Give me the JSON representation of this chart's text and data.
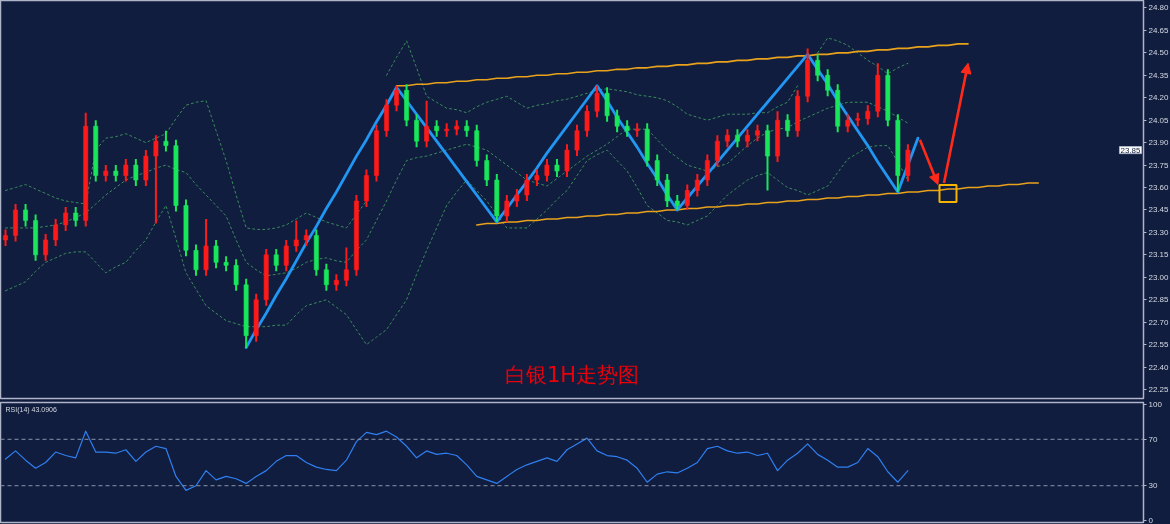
{
  "chart_data": [
    {
      "type": "candlestick",
      "categories": [
        null,
        null,
        null,
        null,
        null,
        null,
        null,
        null,
        null,
        null,
        null,
        null,
        null,
        null,
        null,
        null,
        null,
        null,
        null,
        null,
        null,
        null,
        null,
        null,
        null,
        null,
        null,
        null,
        null,
        null,
        null,
        null,
        null,
        null,
        null,
        null,
        null,
        null,
        null,
        null,
        null,
        null,
        null,
        null,
        null,
        null,
        null,
        null,
        null,
        null,
        null,
        null,
        null,
        null,
        null,
        null,
        null,
        null,
        null,
        null,
        null,
        null,
        null,
        null,
        null,
        null,
        null,
        null,
        null,
        null,
        null,
        null,
        null,
        null,
        null,
        null,
        null,
        null,
        null,
        null,
        null,
        null,
        null,
        null,
        null,
        null,
        null,
        null,
        null,
        null,
        null,
        null,
        null,
        null,
        null,
        null,
        null,
        null,
        null,
        null,
        null,
        null,
        null,
        null,
        null,
        null,
        null,
        null,
        null,
        null,
        null,
        null,
        null,
        null
      ],
      "ohlc": [
        [
          23.25,
          23.32,
          23.21,
          23.28
        ],
        [
          23.28,
          23.49,
          23.24,
          23.45
        ],
        [
          23.45,
          23.49,
          23.34,
          23.38
        ],
        [
          23.38,
          23.42,
          23.11,
          23.15
        ],
        [
          23.15,
          23.29,
          23.11,
          23.25
        ],
        [
          23.25,
          23.39,
          23.21,
          23.35
        ],
        [
          23.35,
          23.47,
          23.31,
          23.43
        ],
        [
          23.43,
          23.47,
          23.34,
          23.38
        ],
        [
          23.38,
          24.1,
          23.34,
          24.01
        ],
        [
          24.01,
          24.05,
          23.64,
          23.68
        ],
        [
          23.68,
          23.75,
          23.64,
          23.71
        ],
        [
          23.71,
          23.75,
          23.64,
          23.68
        ],
        [
          23.68,
          23.79,
          23.64,
          23.75
        ],
        [
          23.75,
          23.79,
          23.61,
          23.65
        ],
        [
          23.65,
          23.85,
          23.61,
          23.81
        ],
        [
          23.81,
          23.95,
          23.36,
          23.91
        ],
        [
          23.91,
          23.98,
          23.84,
          23.88
        ],
        [
          23.88,
          23.92,
          23.44,
          23.48
        ],
        [
          23.48,
          23.52,
          23.14,
          23.18
        ],
        [
          23.18,
          23.22,
          23.01,
          23.05
        ],
        [
          23.05,
          23.39,
          23.01,
          23.21
        ],
        [
          23.21,
          23.25,
          23.06,
          23.1
        ],
        [
          23.1,
          23.14,
          23.04,
          23.08
        ],
        [
          23.08,
          23.12,
          22.91,
          22.95
        ],
        [
          22.95,
          22.99,
          22.53,
          22.61
        ],
        [
          22.61,
          22.89,
          22.57,
          22.85
        ],
        [
          22.85,
          23.19,
          22.81,
          23.15
        ],
        [
          23.15,
          23.19,
          23.04,
          23.08
        ],
        [
          23.08,
          23.25,
          23.04,
          23.21
        ],
        [
          23.21,
          23.38,
          23.17,
          23.25
        ],
        [
          23.25,
          23.32,
          23.21,
          23.28
        ],
        [
          23.28,
          23.32,
          23.01,
          23.05
        ],
        [
          23.05,
          23.09,
          22.91,
          22.95
        ],
        [
          22.95,
          23.02,
          22.91,
          22.98
        ],
        [
          22.98,
          23.2,
          22.94,
          23.05
        ],
        [
          23.05,
          23.55,
          23.01,
          23.51
        ],
        [
          23.51,
          23.72,
          23.47,
          23.68
        ],
        [
          23.68,
          24.02,
          23.64,
          23.98
        ],
        [
          23.98,
          24.19,
          23.94,
          24.15
        ],
        [
          24.15,
          24.28,
          24.11,
          24.25
        ],
        [
          24.25,
          24.29,
          24.01,
          24.05
        ],
        [
          24.05,
          24.09,
          23.87,
          23.91
        ],
        [
          23.91,
          24.18,
          23.87,
          24.01
        ],
        [
          24.01,
          24.05,
          23.94,
          23.98
        ],
        [
          23.98,
          24.03,
          23.94,
          23.99
        ],
        [
          23.99,
          24.05,
          23.95,
          24.01
        ],
        [
          24.01,
          24.05,
          23.94,
          23.98
        ],
        [
          23.98,
          24.02,
          23.74,
          23.78
        ],
        [
          23.78,
          23.82,
          23.61,
          23.65
        ],
        [
          23.65,
          23.69,
          23.37,
          23.41
        ],
        [
          23.41,
          23.55,
          23.37,
          23.51
        ],
        [
          23.51,
          23.59,
          23.47,
          23.55
        ],
        [
          23.55,
          23.69,
          23.51,
          23.65
        ],
        [
          23.65,
          23.72,
          23.61,
          23.68
        ],
        [
          23.68,
          23.79,
          23.64,
          23.75
        ],
        [
          23.75,
          23.79,
          23.67,
          23.71
        ],
        [
          23.71,
          23.89,
          23.67,
          23.85
        ],
        [
          23.85,
          24.02,
          23.81,
          23.98
        ],
        [
          23.98,
          24.15,
          23.94,
          24.11
        ],
        [
          24.11,
          24.28,
          24.07,
          24.23
        ],
        [
          24.23,
          24.27,
          24.04,
          24.08
        ],
        [
          24.08,
          24.12,
          23.97,
          24.01
        ],
        [
          24.01,
          24.05,
          23.94,
          23.98
        ],
        [
          23.98,
          24.03,
          23.94,
          23.99
        ],
        [
          23.99,
          24.03,
          23.74,
          23.78
        ],
        [
          23.78,
          23.82,
          23.61,
          23.65
        ],
        [
          23.65,
          23.69,
          23.47,
          23.51
        ],
        [
          23.51,
          23.55,
          23.45,
          23.48
        ],
        [
          23.48,
          23.62,
          23.45,
          23.58
        ],
        [
          23.58,
          23.69,
          23.54,
          23.65
        ],
        [
          23.65,
          23.82,
          23.61,
          23.78
        ],
        [
          23.78,
          23.95,
          23.74,
          23.91
        ],
        [
          23.91,
          23.99,
          23.87,
          23.95
        ],
        [
          23.95,
          23.99,
          23.87,
          23.91
        ],
        [
          23.91,
          23.99,
          23.87,
          23.95
        ],
        [
          23.95,
          24.02,
          23.91,
          23.98
        ],
        [
          23.98,
          24.02,
          23.58,
          23.81
        ],
        [
          23.81,
          24.11,
          23.77,
          24.05
        ],
        [
          24.05,
          24.09,
          23.94,
          23.98
        ],
        [
          23.98,
          24.25,
          23.94,
          24.21
        ],
        [
          24.21,
          24.53,
          24.17,
          24.45
        ],
        [
          24.45,
          24.49,
          24.31,
          24.35
        ],
        [
          24.35,
          24.39,
          24.21,
          24.25
        ],
        [
          24.25,
          24.29,
          23.97,
          24.01
        ],
        [
          24.01,
          24.09,
          23.97,
          24.05
        ],
        [
          24.05,
          24.1,
          24.01,
          24.06
        ],
        [
          24.06,
          24.15,
          24.02,
          24.11
        ],
        [
          24.11,
          24.43,
          24.07,
          24.35
        ],
        [
          24.35,
          24.39,
          24.01,
          24.05
        ],
        [
          24.05,
          24.09,
          23.57,
          23.68
        ],
        [
          23.68,
          23.89,
          23.64,
          23.85
        ],
        null,
        null,
        null,
        null,
        null,
        null,
        null,
        null,
        null,
        null,
        null,
        null,
        null,
        null,
        null,
        null,
        null,
        null,
        null,
        null,
        null,
        null,
        null
      ],
      "colors": [
        "#ff1a1a",
        "#ff1a1a",
        "#19e65a",
        "#19e65a",
        "#ff1a1a",
        "#ff1a1a",
        "#ff1a1a",
        "#19e65a",
        "#ff1a1a",
        "#19e65a",
        "#ff1a1a",
        "#19e65a",
        "#ff1a1a",
        "#19e65a",
        "#ff1a1a",
        "#ff1a1a",
        "#19e65a",
        "#19e65a",
        "#19e65a",
        "#19e65a",
        "#ff1a1a",
        "#19e65a",
        "#19e65a",
        "#19e65a",
        "#19e65a",
        "#ff1a1a",
        "#ff1a1a",
        "#19e65a",
        "#ff1a1a",
        "#ff1a1a",
        "#ff1a1a",
        "#19e65a",
        "#19e65a",
        "#ff1a1a",
        "#ff1a1a",
        "#ff1a1a",
        "#ff1a1a",
        "#ff1a1a",
        "#ff1a1a",
        "#ff1a1a",
        "#19e65a",
        "#19e65a",
        "#ff1a1a",
        "#19e65a",
        "#ff1a1a",
        "#ff1a1a",
        "#19e65a",
        "#19e65a",
        "#19e65a",
        "#19e65a",
        "#ff1a1a",
        "#ff1a1a",
        "#ff1a1a",
        "#ff1a1a",
        "#ff1a1a",
        "#19e65a",
        "#ff1a1a",
        "#ff1a1a",
        "#ff1a1a",
        "#ff1a1a",
        "#19e65a",
        "#19e65a",
        "#19e65a",
        "#ff1a1a",
        "#19e65a",
        "#19e65a",
        "#19e65a",
        "#19e65a",
        "#ff1a1a",
        "#ff1a1a",
        "#ff1a1a",
        "#ff1a1a",
        "#ff1a1a",
        "#19e65a",
        "#ff1a1a",
        "#ff1a1a",
        "#19e65a",
        "#ff1a1a",
        "#19e65a",
        "#ff1a1a",
        "#ff1a1a",
        "#19e65a",
        "#19e65a",
        "#19e65a",
        "#ff1a1a",
        "#ff1a1a",
        "#ff1a1a",
        "#ff1a1a",
        "#19e65a",
        "#19e65a",
        "#ff1a1a",
        null,
        null,
        null,
        null,
        null,
        null,
        null,
        null,
        null,
        null,
        null,
        null,
        null,
        null,
        null,
        null,
        null,
        null,
        null,
        null,
        null,
        null,
        null
      ],
      "ylim": [
        22.19,
        24.85
      ],
      "yticks": [
        22.25,
        {
          "value": 22.4,
          "label": "22.40"
        },
        22.55,
        {
          "value": 22.7,
          "label": "22.70"
        },
        22.85,
        {
          "value": 23.0,
          "label": "23.00"
        },
        23.15,
        {
          "value": 23.3,
          "label": "23.30"
        },
        23.45,
        {
          "value": 23.6,
          "label": "23.60"
        },
        23.75,
        {
          "value": 23.9,
          "label": "23.90"
        },
        24.05,
        {
          "value": 24.2,
          "label": "24.20"
        },
        24.35,
        {
          "value": 24.5,
          "label": "24.50"
        },
        24.65,
        {
          "value": 24.8,
          "label": "24.80"
        }
      ],
      "series": [
        {
          "type": "line",
          "color": "#3a8c5c",
          "line_style": "dotted",
          "values": [
            23.58,
            23.6,
            23.62,
            23.59,
            23.56,
            23.53,
            23.51,
            23.5,
            23.49,
            23.85,
            23.93,
            23.94,
            23.96,
            23.93,
            23.9,
            23.93,
            23.96,
            24.06,
            24.15,
            24.17,
            24.18,
            23.98,
            23.78,
            23.55,
            23.33,
            23.32,
            23.32,
            23.33,
            23.35,
            23.39,
            23.43,
            23.4,
            23.37,
            23.35,
            23.33,
            23.42,
            23.51,
            null,
            24.35,
            24.47,
            24.58,
            24.4,
            24.21,
            24.17,
            24.13,
            24.12,
            24.1,
            24.14,
            24.17,
            24.19,
            24.21,
            24.17,
            24.13,
            24.15,
            24.16,
            24.18,
            24.19,
            24.21,
            24.23,
            24.25,
            24.26,
            24.25,
            24.24,
            24.22,
            24.21,
            24.2,
            24.18,
            24.14,
            24.09,
            24.07,
            24.05,
            24.07,
            24.09,
            24.09,
            24.09,
            24.1,
            24.1,
            24.14,
            24.17,
            24.28,
            null,
            24.5,
            24.6,
            24.58,
            24.55,
            24.5,
            24.45,
            24.41,
            24.36,
            24.4,
            24.43,
            null,
            null,
            null,
            null,
            null,
            null,
            null,
            null,
            null,
            null,
            null,
            null,
            null,
            null,
            null,
            null,
            null,
            null,
            null,
            null,
            null,
            null,
            null
          ]
        },
        {
          "type": "line",
          "color": "#3a8c5c",
          "line_style": "dotted",
          "values": [
            23.33,
            23.33,
            23.33,
            23.33,
            23.34,
            23.35,
            23.37,
            23.4,
            23.43,
            23.49,
            23.55,
            23.6,
            23.65,
            23.68,
            23.7,
            23.73,
            23.75,
            23.72,
            23.7,
            23.62,
            23.55,
            23.48,
            23.41,
            23.25,
            23.1,
            23.05,
            23.01,
            23.02,
            23.03,
            23.06,
            23.1,
            23.12,
            23.13,
            23.11,
            23.1,
            23.18,
            23.25,
            23.38,
            23.51,
            23.65,
            23.78,
            23.8,
            23.81,
            23.83,
            23.85,
            23.87,
            23.89,
            23.87,
            23.85,
            23.8,
            23.75,
            23.7,
            23.65,
            23.63,
            23.61,
            23.66,
            23.71,
            23.76,
            23.81,
            23.85,
            23.89,
            23.94,
            23.99,
            23.99,
            23.99,
            23.92,
            23.85,
            23.8,
            23.75,
            23.73,
            23.71,
            23.74,
            23.76,
            23.82,
            23.88,
            23.93,
            23.97,
            23.99,
            24.0,
            24.04,
            24.07,
            24.1,
            24.13,
            24.15,
            24.17,
            24.17,
            24.17,
            24.14,
            24.11,
            24.07,
            24.03,
            null,
            null,
            null,
            null,
            null,
            null,
            null,
            null,
            null,
            null,
            null,
            null,
            null,
            null,
            null,
            null,
            null,
            null,
            null,
            null,
            null,
            null,
            null
          ]
        },
        {
          "type": "line",
          "color": "#3a8c5c",
          "line_style": "dotted",
          "values": [
            22.91,
            22.94,
            22.97,
            23.04,
            23.1,
            23.13,
            23.16,
            23.17,
            23.17,
            23.1,
            23.03,
            23.07,
            23.1,
            23.18,
            23.25,
            23.37,
            23.48,
            23.26,
            23.03,
            22.92,
            22.81,
            22.76,
            22.71,
            22.69,
            22.67,
            22.67,
            22.67,
            22.68,
            22.68,
            22.75,
            22.81,
            22.83,
            22.85,
            22.8,
            22.75,
            22.65,
            22.55,
            22.6,
            22.65,
            22.75,
            22.85,
            23.02,
            23.18,
            23.33,
            23.48,
            23.57,
            23.65,
            23.58,
            23.51,
            23.42,
            23.33,
            23.33,
            23.33,
            23.39,
            23.45,
            23.52,
            23.58,
            23.68,
            23.78,
            23.82,
            23.85,
            23.78,
            23.71,
            23.6,
            23.48,
            23.43,
            23.38,
            23.37,
            23.35,
            23.38,
            23.41,
            23.48,
            23.55,
            23.6,
            23.65,
            23.68,
            23.7,
            23.65,
            23.6,
            23.58,
            23.55,
            23.58,
            23.61,
            23.7,
            23.79,
            23.83,
            23.87,
            23.88,
            23.88,
            23.77,
            23.65,
            null,
            null,
            null,
            null,
            null,
            null,
            null,
            null,
            null,
            null,
            null,
            null,
            null,
            null,
            null,
            null,
            null,
            null,
            null,
            null,
            null,
            null,
            null
          ]
        },
        {
          "type": "line",
          "color": "#e9a21c",
          "line_style": "solid",
          "values": [
            null,
            null,
            null,
            null,
            null,
            null,
            null,
            null,
            null,
            null,
            null,
            null,
            null,
            null,
            null,
            null,
            null,
            null,
            null,
            null,
            null,
            null,
            null,
            null,
            null,
            null,
            null,
            null,
            null,
            null,
            null,
            null,
            null,
            null,
            null,
            null,
            null,
            null,
            null,
            24.28,
            24.28,
            24.29,
            24.29,
            24.3,
            24.3,
            24.31,
            24.31,
            24.32,
            24.32,
            24.33,
            24.33,
            24.34,
            24.34,
            24.35,
            24.35,
            24.36,
            24.36,
            24.37,
            24.37,
            24.38,
            24.38,
            24.39,
            24.39,
            24.4,
            24.4,
            24.41,
            24.41,
            24.42,
            24.42,
            24.43,
            24.43,
            24.44,
            24.44,
            24.45,
            24.45,
            24.46,
            24.46,
            24.47,
            24.47,
            24.48,
            24.48,
            24.49,
            24.49,
            24.5,
            24.5,
            24.51,
            24.51,
            24.52,
            24.52,
            24.53,
            24.53,
            24.54,
            24.54,
            24.55,
            24.55,
            24.56,
            24.56,
            null,
            null,
            null,
            null,
            null,
            null,
            null,
            null,
            null,
            null,
            null,
            null,
            null,
            null,
            null,
            null,
            null
          ]
        },
        {
          "type": "line",
          "color": "#e9a21c",
          "line_style": "solid",
          "values": [
            null,
            null,
            null,
            null,
            null,
            null,
            null,
            null,
            null,
            null,
            null,
            null,
            null,
            null,
            null,
            null,
            null,
            null,
            null,
            null,
            null,
            null,
            null,
            null,
            null,
            null,
            null,
            null,
            null,
            null,
            null,
            null,
            null,
            null,
            null,
            null,
            null,
            null,
            null,
            null,
            null,
            null,
            null,
            null,
            null,
            null,
            null,
            23.35,
            23.36,
            23.36,
            23.37,
            23.37,
            23.38,
            23.38,
            23.39,
            23.39,
            23.4,
            23.4,
            23.41,
            23.41,
            23.42,
            23.42,
            23.43,
            23.43,
            23.44,
            23.44,
            23.45,
            23.45,
            23.46,
            23.46,
            23.47,
            23.47,
            23.48,
            23.48,
            23.49,
            23.49,
            23.5,
            23.5,
            23.51,
            23.51,
            23.52,
            23.52,
            23.53,
            23.53,
            23.54,
            23.54,
            23.55,
            23.55,
            23.56,
            23.56,
            23.57,
            23.57,
            23.58,
            23.58,
            23.59,
            23.59,
            23.6,
            23.6,
            23.61,
            23.61,
            23.62,
            23.62,
            23.63,
            23.63,
            null,
            null,
            null,
            null,
            null,
            null,
            null,
            null,
            null,
            null
          ]
        },
        {
          "type": "line",
          "color": "#2196f3",
          "line_style": "solid",
          "values": [
            null,
            null,
            null,
            null,
            null,
            null,
            null,
            null,
            null,
            null,
            null,
            null,
            null,
            null,
            null,
            null,
            null,
            null,
            null,
            null,
            null,
            null,
            null,
            null,
            22.53,
            22.65,
            22.76,
            22.88,
            22.99,
            23.11,
            23.23,
            23.34,
            23.46,
            23.57,
            23.69,
            23.81,
            23.92,
            24.04,
            24.15,
            24.27,
            24.18,
            24.09,
            24.0,
            23.91,
            23.82,
            23.73,
            23.64,
            23.55,
            23.46,
            23.37,
            23.46,
            23.55,
            23.64,
            23.73,
            23.83,
            23.92,
            24.01,
            24.1,
            24.19,
            24.28,
            24.18,
            24.07,
            23.97,
            23.87,
            23.76,
            23.66,
            23.55,
            23.45,
            23.53,
            23.61,
            23.69,
            23.77,
            23.85,
            23.93,
            24.01,
            24.09,
            24.17,
            24.25,
            24.33,
            24.41,
            24.49,
            24.39,
            24.29,
            24.18,
            24.08,
            23.98,
            23.88,
            23.77,
            23.67,
            23.57,
            23.75,
            23.93,
            null,
            null,
            null,
            null,
            null,
            null,
            null,
            null,
            null,
            null,
            null,
            null,
            null,
            null,
            null,
            null,
            null,
            null,
            null,
            null,
            null,
            null
          ]
        },
        {
          "type": "scatter",
          "color": "#f5b400",
          "marker": "square",
          "values": [
            null,
            null,
            null,
            null,
            null,
            null,
            null,
            null,
            null,
            null,
            null,
            null,
            null,
            null,
            null,
            null,
            null,
            null,
            null,
            null,
            null,
            null,
            null,
            null,
            null,
            null,
            null,
            null,
            null,
            null,
            null,
            null,
            null,
            null,
            null,
            null,
            null,
            null,
            null,
            null,
            null,
            null,
            null,
            null,
            null,
            null,
            null,
            null,
            null,
            null,
            null,
            null,
            null,
            null,
            null,
            null,
            null,
            null,
            null,
            null,
            null,
            null,
            null,
            null,
            null,
            null,
            null,
            null,
            null,
            null,
            null,
            null,
            null,
            null,
            null,
            null,
            null,
            null,
            null,
            null,
            null,
            null,
            null,
            null,
            null,
            null,
            null,
            null,
            null,
            null,
            null,
            null,
            null,
            null,
            23.56,
            null,
            null,
            null,
            null,
            null,
            null,
            null,
            null,
            null,
            null,
            null,
            null,
            null,
            null,
            null,
            null,
            null,
            null,
            null
          ]
        }
      ],
      "annotations": [
        "白银1H走势图",
        {
          "text": "23.85",
          "y": 23.85
        }
      ]
    },
    {
      "type": "line",
      "title": "RSI(14) 43.0906",
      "categories": [
        null,
        null,
        null,
        null,
        null,
        null,
        null,
        null,
        null,
        null,
        null,
        null,
        null,
        null,
        null,
        null,
        null,
        null,
        null,
        null,
        null,
        null,
        null,
        null,
        null,
        null,
        null,
        null,
        null,
        null,
        null,
        null,
        null,
        null,
        null,
        null,
        null,
        null,
        null,
        null,
        null,
        null,
        null,
        null,
        null,
        null,
        null,
        null,
        null,
        null,
        null,
        null,
        null,
        null,
        null,
        null,
        null,
        null,
        null,
        null,
        null,
        null,
        null,
        null,
        null,
        null,
        null,
        null,
        null,
        null,
        null,
        null,
        null,
        null,
        null,
        null,
        null,
        null,
        null,
        null,
        null,
        null,
        null,
        null,
        null,
        null,
        null,
        null,
        null,
        null,
        null,
        null,
        null,
        null,
        null,
        null,
        null,
        null,
        null,
        null,
        null,
        null,
        null,
        null,
        null,
        null,
        null,
        null,
        null,
        null,
        null,
        null,
        null,
        null
      ],
      "values": [
        53,
        60,
        52,
        45,
        50,
        59,
        56,
        54,
        77,
        59,
        59,
        58,
        61,
        51,
        59,
        64,
        62,
        38,
        26,
        30,
        43,
        35,
        38,
        36,
        32,
        38,
        43,
        51,
        56,
        56,
        50,
        46,
        44,
        43,
        52,
        68,
        76,
        74,
        77,
        72,
        64,
        54,
        60,
        57,
        58,
        56,
        48,
        38,
        35,
        32,
        38,
        44,
        48,
        51,
        54,
        51,
        61,
        66,
        71,
        60,
        56,
        55,
        52,
        45,
        33,
        40,
        42,
        41,
        45,
        50,
        62,
        64,
        60,
        58,
        59,
        56,
        58,
        43,
        52,
        58,
        66,
        57,
        52,
        46,
        46,
        50,
        62,
        55,
        42,
        33,
        43,
        null,
        null,
        null,
        null,
        null,
        null,
        null,
        null,
        null,
        null,
        null,
        null,
        null,
        null,
        null,
        null,
        null,
        null,
        null,
        null,
        null,
        null,
        null
      ],
      "color": "#2f7ff0",
      "ylim": [
        -1.7,
        101.7
      ],
      "yticks": [
        0,
        30,
        70,
        100
      ],
      "ref_lines": [
        {
          "axis": "y",
          "value": 70,
          "color": "#8a93ad",
          "line_style": "dashed"
        },
        {
          "axis": "y",
          "value": 30,
          "color": "#8a93ad",
          "line_style": "dashed"
        }
      ]
    }
  ]
}
